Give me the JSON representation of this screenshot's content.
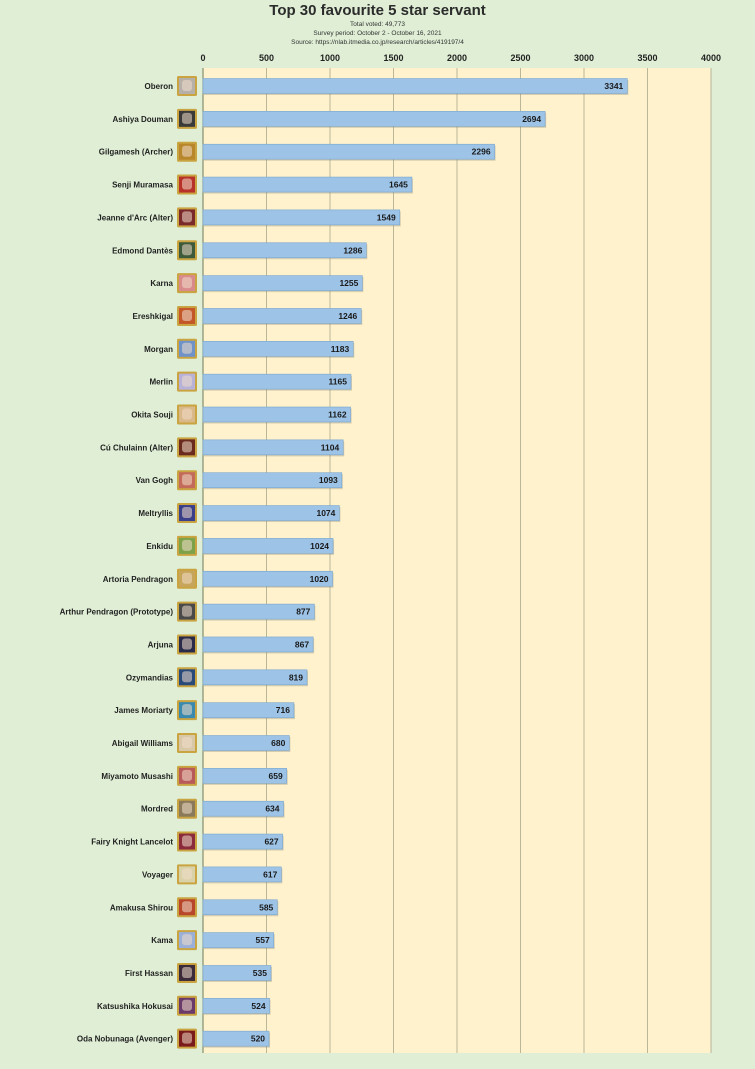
{
  "chart_data": {
    "type": "bar",
    "orientation": "horizontal",
    "title": "Top 30 favourite 5 star servant",
    "subtitle_lines": [
      "Total voted: 49,773",
      "Survey period: October 2 - October 16, 2021",
      "Source: https://nlab.itmedia.co.jp/research/articles/419197/4"
    ],
    "xlim": [
      0,
      4000
    ],
    "xticks": [
      0,
      500,
      1000,
      1500,
      2000,
      2500,
      3000,
      3500,
      4000
    ],
    "grid": true,
    "legend": "none",
    "colors": {
      "bar": "#9dc3e6",
      "bar_border": "#7aa7cf",
      "plot_bg": "#fff2cc",
      "page_bg": "#dfeed5",
      "grid": "#a8a88a"
    },
    "categories": [
      "Oberon",
      "Ashiya Douman",
      "Gilgamesh (Archer)",
      "Senji Muramasa",
      "Jeanne d'Arc (Alter)",
      "Edmond Dantès",
      "Karna",
      "Ereshkigal",
      "Morgan",
      "Merlin",
      "Okita Souji",
      "Cú Chulainn (Alter)",
      "Van Gogh",
      "Meltryllis",
      "Enkidu",
      "Artoria Pendragon",
      "Arthur Pendragon (Prototype)",
      "Arjuna",
      "Ozymandias",
      "James Moriarty",
      "Abigail Williams",
      "Miyamoto Musashi",
      "Mordred",
      "Fairy Knight Lancelot",
      "Voyager",
      "Amakusa Shirou",
      "Kama",
      "First Hassan",
      "Katsushika Hokusai",
      "Oda Nobunaga (Avenger)"
    ],
    "values": [
      3341,
      2694,
      2296,
      1645,
      1549,
      1286,
      1255,
      1246,
      1183,
      1165,
      1162,
      1104,
      1093,
      1074,
      1024,
      1020,
      877,
      867,
      819,
      716,
      680,
      659,
      634,
      627,
      617,
      585,
      557,
      535,
      524,
      520
    ],
    "icon_colors": [
      "#b7b0a8",
      "#3a3a3a",
      "#b8862b",
      "#b8322a",
      "#7a2a2a",
      "#3d5a3a",
      "#d98a8a",
      "#c4572a",
      "#6f93c9",
      "#b9b2d8",
      "#d9b88a",
      "#6a2a1e",
      "#c46a5a",
      "#3a3f8a",
      "#7da34a",
      "#c7a55a",
      "#4a4a4a",
      "#2a2a4a",
      "#2a4a7a",
      "#3a8ab0",
      "#d9c8a8",
      "#b85a5a",
      "#8a7a5a",
      "#8a2a3a",
      "#d9d2a8",
      "#b8462a",
      "#9ab0d9",
      "#3a2a3a",
      "#6a3a6a",
      "#7a1a1a"
    ]
  }
}
